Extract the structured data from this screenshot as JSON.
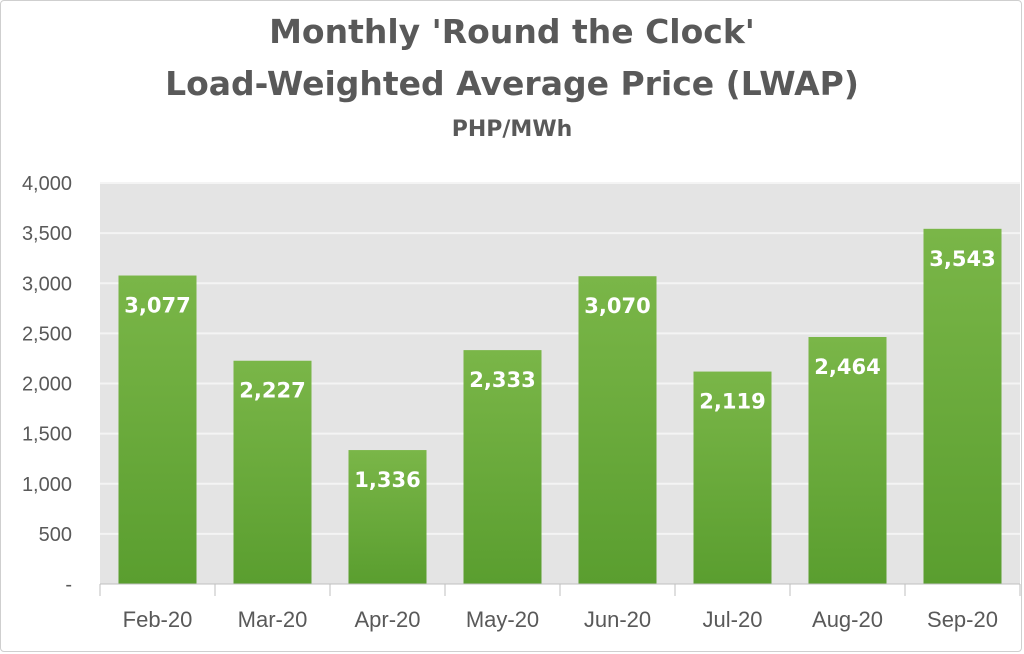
{
  "chart_data": {
    "type": "bar",
    "title": "Monthly 'Round the Clock'",
    "title_line2": "Load-Weighted Average Price (LWAP)",
    "subtitle": "PHP/MWh",
    "categories": [
      "Feb-20",
      "Mar-20",
      "Apr-20",
      "May-20",
      "Jun-20",
      "Jul-20",
      "Aug-20",
      "Sep-20"
    ],
    "values": [
      3077,
      2227,
      1336,
      2333,
      3070,
      2119,
      2464,
      3543
    ],
    "data_labels": [
      "3,077",
      "2,227",
      "1,336",
      "2,333",
      "3,070",
      "2,119",
      "2,464",
      "3,543"
    ],
    "ylim": [
      0,
      4000
    ],
    "y_ticks": [
      0,
      500,
      1000,
      1500,
      2000,
      2500,
      3000,
      3500,
      4000
    ],
    "y_tick_labels": [
      "-",
      "500",
      "1,000",
      "1,500",
      "2,000",
      "2,500",
      "3,000",
      "3,500",
      "4,000"
    ],
    "grid": true,
    "legend": "none",
    "colors": {
      "bar_top": "#7ab648",
      "bar_bottom": "#5a9e2f",
      "plot_background": "#e4e4e4",
      "gridline": "#f4f4f4",
      "text": "#595959"
    }
  }
}
